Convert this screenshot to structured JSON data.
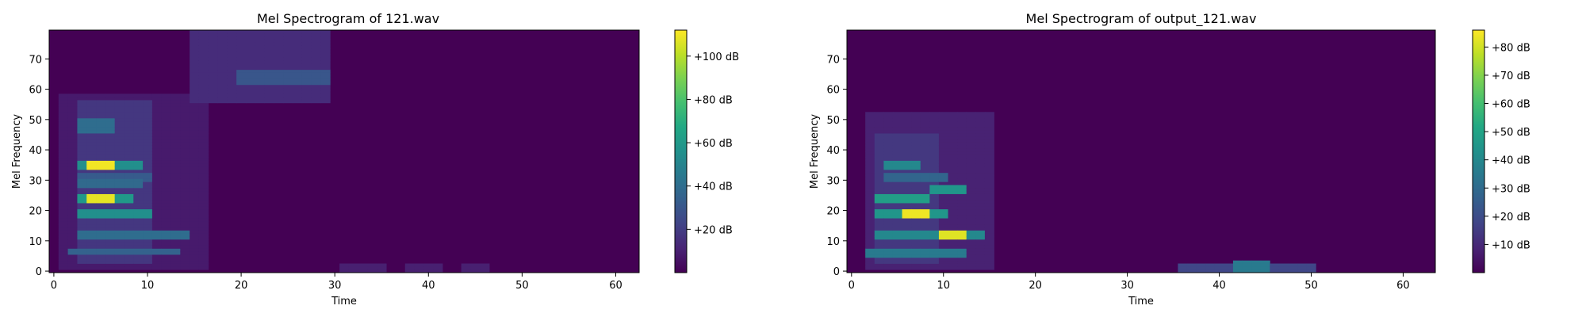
{
  "chart_data": [
    {
      "type": "heatmap",
      "title": "Mel Spectrogram of 121.wav",
      "xlabel": "Time",
      "ylabel": "Mel Frequency",
      "xlim": [
        -0.5,
        62.5
      ],
      "ylim": [
        -0.5,
        79.5
      ],
      "xticks": [
        "0",
        "10",
        "20",
        "30",
        "40",
        "50",
        "60"
      ],
      "yticks": [
        "0",
        "10",
        "20",
        "30",
        "40",
        "50",
        "60",
        "70"
      ],
      "colormap": "viridis",
      "colorbar": {
        "min": 0,
        "max": 112,
        "ticks": [
          {
            "value": 20,
            "label": "+20 dB"
          },
          {
            "value": 40,
            "label": "+40 dB"
          },
          {
            "value": 60,
            "label": "+60 dB"
          },
          {
            "value": 80,
            "label": "+80 dB"
          },
          {
            "value": 100,
            "label": "+100 dB"
          }
        ]
      },
      "features": [
        {
          "t": [
            1,
            16
          ],
          "mel": [
            1,
            58
          ],
          "level": 8
        },
        {
          "t": [
            3,
            10
          ],
          "mel": [
            3,
            56
          ],
          "level": 18
        },
        {
          "t": [
            15,
            29
          ],
          "mel": [
            56,
            79
          ],
          "level": 14
        },
        {
          "t": [
            20,
            29
          ],
          "mel": [
            62,
            66
          ],
          "level": 30
        },
        {
          "t": [
            2,
            13
          ],
          "mel": [
            6,
            7
          ],
          "level": 35
        },
        {
          "t": [
            3,
            14
          ],
          "mel": [
            11,
            13
          ],
          "level": 40
        },
        {
          "t": [
            3,
            10
          ],
          "mel": [
            18,
            20
          ],
          "level": 55
        },
        {
          "t": [
            3,
            8
          ],
          "mel": [
            23,
            25
          ],
          "level": 60
        },
        {
          "t": [
            4,
            6
          ],
          "mel": [
            23,
            25
          ],
          "level": 108
        },
        {
          "t": [
            3,
            9
          ],
          "mel": [
            34,
            36
          ],
          "level": 55
        },
        {
          "t": [
            4,
            6
          ],
          "mel": [
            34,
            36
          ],
          "level": 110
        },
        {
          "t": [
            3,
            9
          ],
          "mel": [
            28,
            30
          ],
          "level": 38
        },
        {
          "t": [
            3,
            10
          ],
          "mel": [
            30,
            32
          ],
          "level": 32
        },
        {
          "t": [
            3,
            6
          ],
          "mel": [
            46,
            50
          ],
          "level": 40
        },
        {
          "t": [
            31,
            35
          ],
          "mel": [
            0,
            2
          ],
          "level": 10
        },
        {
          "t": [
            38,
            41
          ],
          "mel": [
            0,
            2
          ],
          "level": 10
        },
        {
          "t": [
            44,
            46
          ],
          "mel": [
            0,
            2
          ],
          "level": 10
        }
      ]
    },
    {
      "type": "heatmap",
      "title": "Mel Spectrogram of output_121.wav",
      "xlabel": "Time",
      "ylabel": "Mel Frequency",
      "xlim": [
        -0.5,
        63.5
      ],
      "ylim": [
        -0.5,
        79.5
      ],
      "xticks": [
        "0",
        "10",
        "20",
        "30",
        "40",
        "50",
        "60"
      ],
      "yticks": [
        "0",
        "10",
        "20",
        "30",
        "40",
        "50",
        "60",
        "70"
      ],
      "colormap": "viridis",
      "colorbar": {
        "min": 0,
        "max": 86,
        "ticks": [
          {
            "value": 10,
            "label": "+10 dB"
          },
          {
            "value": 20,
            "label": "+20 dB"
          },
          {
            "value": 30,
            "label": "+30 dB"
          },
          {
            "value": 40,
            "label": "+40 dB"
          },
          {
            "value": 50,
            "label": "+50 dB"
          },
          {
            "value": 60,
            "label": "+60 dB"
          },
          {
            "value": 70,
            "label": "+70 dB"
          },
          {
            "value": 80,
            "label": "+80 dB"
          }
        ]
      },
      "features": [
        {
          "t": [
            2,
            15
          ],
          "mel": [
            1,
            52
          ],
          "level": 8
        },
        {
          "t": [
            3,
            9
          ],
          "mel": [
            3,
            45
          ],
          "level": 14
        },
        {
          "t": [
            2,
            12
          ],
          "mel": [
            5,
            7
          ],
          "level": 35
        },
        {
          "t": [
            3,
            14
          ],
          "mel": [
            11,
            13
          ],
          "level": 40
        },
        {
          "t": [
            10,
            12
          ],
          "mel": [
            11,
            13
          ],
          "level": 82
        },
        {
          "t": [
            3,
            10
          ],
          "mel": [
            18,
            20
          ],
          "level": 45
        },
        {
          "t": [
            6,
            8
          ],
          "mel": [
            18,
            20
          ],
          "level": 84
        },
        {
          "t": [
            3,
            8
          ],
          "mel": [
            23,
            25
          ],
          "level": 48
        },
        {
          "t": [
            4,
            7
          ],
          "mel": [
            34,
            36
          ],
          "level": 40
        },
        {
          "t": [
            9,
            12
          ],
          "mel": [
            26,
            28
          ],
          "level": 45
        },
        {
          "t": [
            4,
            10
          ],
          "mel": [
            30,
            32
          ],
          "level": 28
        },
        {
          "t": [
            36,
            50
          ],
          "mel": [
            0,
            2
          ],
          "level": 18
        },
        {
          "t": [
            42,
            45
          ],
          "mel": [
            0,
            3
          ],
          "level": 35
        }
      ]
    }
  ]
}
